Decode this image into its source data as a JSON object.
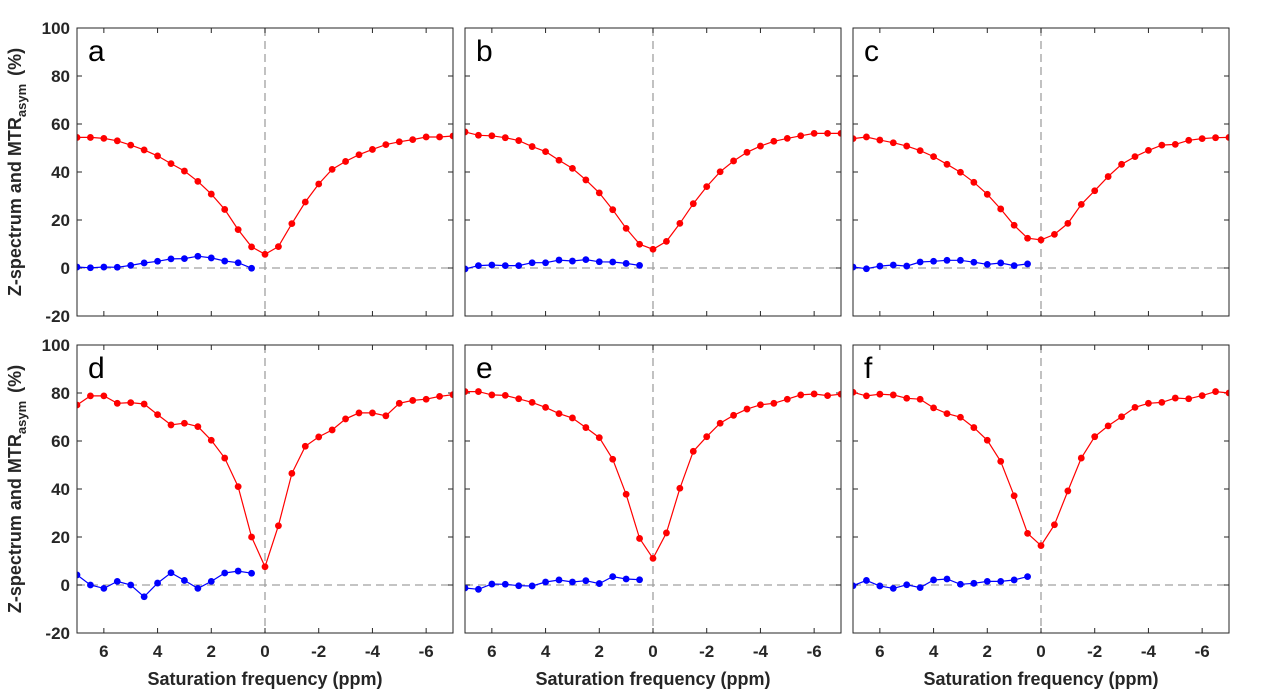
{
  "chart_data": {
    "type": "line",
    "ylabel_main": "Z-spectrum and MTR",
    "ylabel_sub": "asym",
    "ylabel_unit": "(%)",
    "xlabel": "Saturation frequency (ppm)",
    "xlim": [
      7,
      -7
    ],
    "ylim": [
      -20,
      100
    ],
    "xticks": [
      6,
      4,
      2,
      0,
      -2,
      -4,
      -6
    ],
    "yticks": [
      -20,
      0,
      20,
      40,
      60,
      80,
      100
    ],
    "colors": {
      "z_spectrum": "#ff0000",
      "mtr_asym": "#0000ff",
      "reference": "#a0a0a0"
    },
    "x": [
      7,
      6.5,
      6,
      5.5,
      5,
      4.5,
      4,
      3.5,
      3,
      2.5,
      2,
      1.5,
      1,
      0.5,
      0,
      -0.5,
      -1,
      -1.5,
      -2,
      -2.5,
      -3,
      -3.5,
      -4,
      -4.5,
      -5,
      -5.5,
      -6,
      -6.5,
      -7
    ],
    "x_mtr": [
      7,
      6.5,
      6,
      5.5,
      5,
      4.5,
      4,
      3.5,
      3,
      2.5,
      2,
      1.5,
      1,
      0.5
    ],
    "panels": [
      {
        "label": "a",
        "z_spectrum": [
          54.4,
          54.4,
          54.0,
          53.0,
          51.2,
          49.2,
          46.7,
          43.5,
          40.4,
          36.1,
          30.8,
          24.4,
          16.0,
          8.8,
          5.7,
          8.9,
          18.5,
          27.5,
          35.0,
          41.1,
          44.4,
          47.2,
          49.4,
          51.4,
          52.6,
          53.5,
          54.6,
          54.6,
          55.0
        ],
        "mtr_asym": [
          0.4,
          0.1,
          0.4,
          0.3,
          1.1,
          2.1,
          2.8,
          3.8,
          3.9,
          4.9,
          4.2,
          2.9,
          2.2,
          -0.1
        ]
      },
      {
        "label": "b",
        "z_spectrum": [
          56.7,
          55.3,
          55.1,
          54.3,
          53.1,
          50.6,
          48.5,
          44.9,
          41.5,
          36.7,
          31.3,
          24.3,
          16.5,
          9.9,
          7.8,
          11.1,
          18.6,
          26.8,
          33.9,
          40.1,
          44.6,
          48.2,
          50.8,
          52.8,
          54.0,
          55.1,
          56.1,
          56.1,
          56.1
        ],
        "mtr_asym": [
          -0.4,
          1.0,
          1.25,
          1.0,
          1.0,
          2.2,
          2.2,
          3.3,
          2.9,
          3.5,
          2.6,
          2.5,
          1.9,
          1.1
        ]
      },
      {
        "label": "c",
        "z_spectrum": [
          53.9,
          54.6,
          53.3,
          52.2,
          50.8,
          48.9,
          46.4,
          43.2,
          39.9,
          35.7,
          30.7,
          24.6,
          17.8,
          12.4,
          11.7,
          14.0,
          18.6,
          26.5,
          32.2,
          38.1,
          43.2,
          46.4,
          49.0,
          51.2,
          51.5,
          53.2,
          53.9,
          54.3,
          54.4
        ],
        "mtr_asym": [
          0.4,
          -0.3,
          0.8,
          1.25,
          0.8,
          2.5,
          2.8,
          3.2,
          3.2,
          2.4,
          1.5,
          2.1,
          1.0,
          1.7
        ]
      },
      {
        "label": "d",
        "z_spectrum": [
          75.0,
          78.8,
          78.8,
          75.7,
          76.0,
          75.4,
          71.0,
          66.7,
          67.4,
          66.0,
          60.3,
          52.9,
          41.0,
          20.0,
          7.6,
          24.7,
          46.5,
          57.8,
          61.7,
          64.6,
          69.2,
          71.7,
          71.7,
          70.5,
          75.7,
          76.9,
          77.4,
          78.6,
          79.3
        ],
        "mtr_asym": [
          4.2,
          0.0,
          -1.4,
          1.5,
          0.0,
          -4.9,
          0.8,
          5.1,
          1.9,
          -1.4,
          1.5,
          5.0,
          5.8,
          4.9
        ]
      },
      {
        "label": "e",
        "z_spectrum": [
          80.6,
          80.6,
          79.2,
          79.0,
          77.6,
          76.1,
          74.0,
          71.4,
          69.6,
          65.6,
          61.4,
          52.4,
          37.8,
          19.4,
          11.1,
          21.7,
          40.3,
          55.7,
          61.8,
          67.4,
          70.7,
          73.3,
          75.1,
          75.7,
          77.4,
          79.2,
          79.6,
          78.9,
          79.5
        ],
        "mtr_asym": [
          -1.25,
          -1.8,
          0.4,
          0.3,
          -0.3,
          -0.4,
          1.25,
          2.1,
          1.25,
          1.8,
          0.6,
          3.5,
          2.5,
          2.2
        ]
      },
      {
        "label": "f",
        "z_spectrum": [
          80.3,
          78.8,
          79.5,
          79.2,
          77.8,
          77.4,
          73.8,
          71.4,
          69.9,
          65.6,
          60.3,
          51.5,
          37.2,
          21.5,
          16.4,
          25.1,
          39.2,
          52.9,
          61.8,
          66.3,
          70.1,
          74.0,
          75.7,
          76.1,
          77.9,
          77.6,
          78.9,
          80.6,
          80.0
        ],
        "mtr_asym": [
          -0.3,
          1.9,
          -0.4,
          -1.4,
          0.1,
          -1.1,
          2.1,
          2.5,
          0.3,
          0.7,
          1.5,
          1.5,
          2.1,
          3.5
        ]
      }
    ]
  }
}
